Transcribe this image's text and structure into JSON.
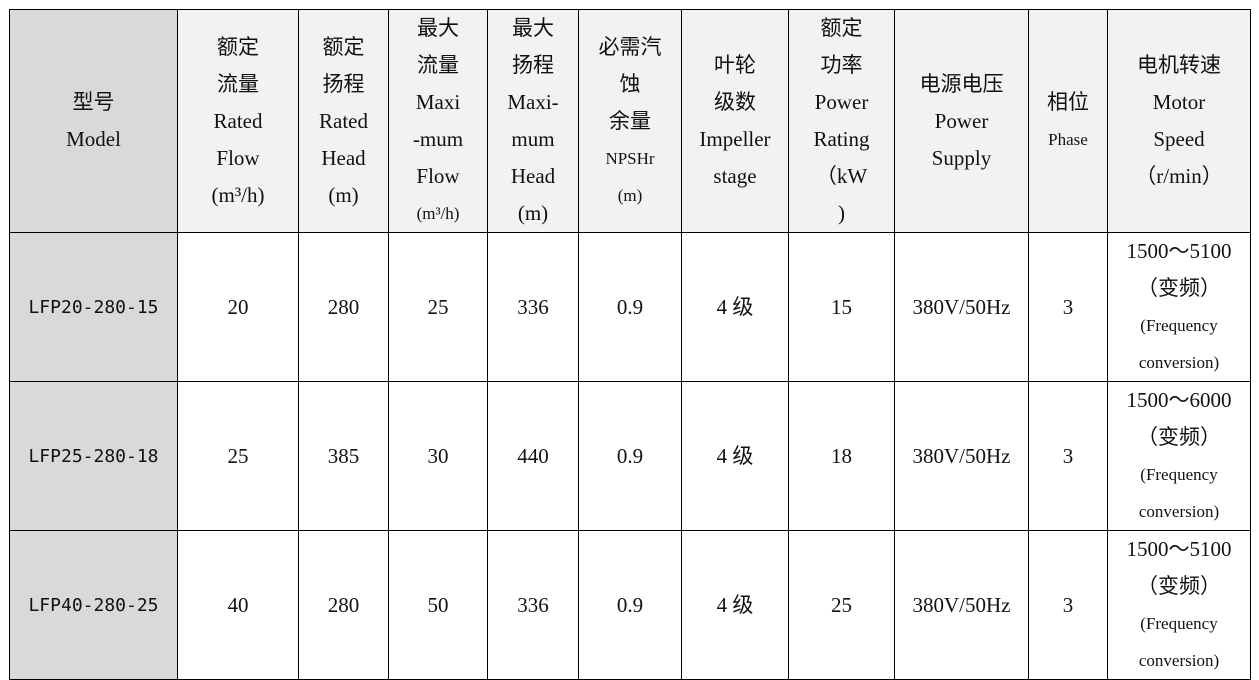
{
  "headers": [
    {
      "lines": [
        "型号",
        "Model"
      ]
    },
    {
      "lines": [
        "额定",
        "流量",
        "Rated",
        "Flow",
        "(m³/h)"
      ]
    },
    {
      "lines": [
        "额定",
        "扬程",
        "Rated",
        "Head",
        "(m)"
      ]
    },
    {
      "lines": [
        "最大",
        "流量",
        "Maxi",
        "-mum",
        "Flow",
        "(m³/h)"
      ]
    },
    {
      "lines": [
        "最大",
        "扬程",
        "Maxi-",
        "mum",
        "Head",
        "(m)"
      ]
    },
    {
      "lines": [
        "必需汽",
        "蚀",
        "余量",
        "NPSHr",
        "(m)"
      ]
    },
    {
      "lines": [
        "叶轮",
        "级数",
        "Impeller",
        "stage"
      ]
    },
    {
      "lines": [
        "额定",
        "功率",
        "Power",
        "Rating",
        "（kW",
        ")"
      ]
    },
    {
      "lines": [
        "电源电压",
        "Power",
        "Supply"
      ]
    },
    {
      "lines": [
        "相位",
        "Phase"
      ]
    },
    {
      "lines": [
        "电机转速",
        "Motor",
        "Speed",
        "（r/min）"
      ]
    }
  ],
  "rows": [
    {
      "cells": [
        "LFP20-280-15",
        "20",
        "280",
        "25",
        "336",
        "0.9",
        "4 级",
        "15",
        "380V/50Hz",
        "3"
      ],
      "speed": [
        "1500～5100",
        "（变频）",
        "(Frequency",
        "conversion)"
      ]
    },
    {
      "cells": [
        "LFP25-280-18",
        "25",
        "385",
        "30",
        "440",
        "0.9",
        "4 级",
        "18",
        "380V/50Hz",
        "3"
      ],
      "speed": [
        "1500～6000",
        "（变频）",
        "(Frequency",
        "conversion)"
      ]
    },
    {
      "cells": [
        "LFP40-280-25",
        "40",
        "280",
        "50",
        "336",
        "0.9",
        "4 级",
        "25",
        "380V/50Hz",
        "3"
      ],
      "speed": [
        "1500～5100",
        "（变频）",
        "(Frequency",
        "conversion)"
      ]
    }
  ]
}
